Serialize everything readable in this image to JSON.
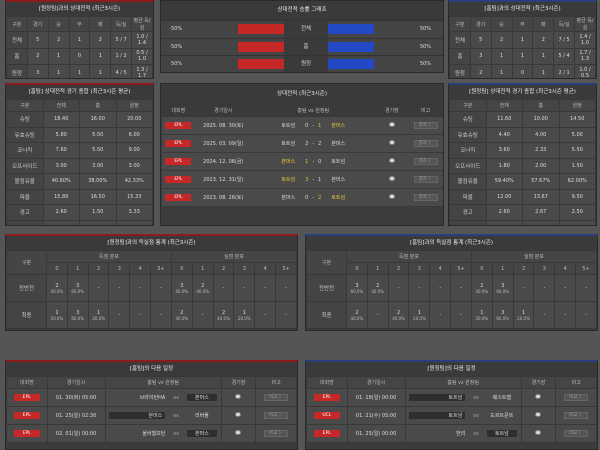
{
  "h2h_home": {
    "title": "[원정팀]과의 상대전적 (최근3시즌)",
    "headers": [
      "구분",
      "경기",
      "승",
      "무",
      "패",
      "득/실",
      "평균 득/실"
    ],
    "rows": [
      [
        "전체",
        "5",
        "2",
        "1",
        "2",
        "5 / 7",
        "1.0 / 1.4"
      ],
      [
        "홈",
        "2",
        "1",
        "0",
        "1",
        "1 / 2",
        "0.5 / 1.0"
      ],
      [
        "원정",
        "3",
        "1",
        "1",
        "1",
        "4 / 5",
        "1.3 / 1.7"
      ]
    ]
  },
  "h2h_away": {
    "title": "[홈팀]과의 상대전적 (최근3시즌)",
    "headers": [
      "구분",
      "경기",
      "승",
      "무",
      "패",
      "득/실",
      "평균 득/실"
    ],
    "rows": [
      [
        "전체",
        "5",
        "2",
        "1",
        "2",
        "7 / 5",
        "1.4 / 1.0"
      ],
      [
        "홈",
        "3",
        "1",
        "1",
        "1",
        "5 / 4",
        "1.7 / 1.3"
      ],
      [
        "원정",
        "2",
        "1",
        "0",
        "1",
        "2 / 1",
        "1.0 / 0.5"
      ]
    ]
  },
  "graph": {
    "title": "상대전적 승률 그래프",
    "rows": [
      {
        "label": "전체",
        "left": "50%",
        "right": "50%",
        "lv": 50,
        "rv": 50
      },
      {
        "label": "홈",
        "left": "50%",
        "right": "50%",
        "lv": 50,
        "rv": 50
      },
      {
        "label": "원정",
        "left": "50%",
        "right": "50%",
        "lv": 50,
        "rv": 50
      }
    ],
    "colors": {
      "home": "#c62828",
      "away": "#2449c4"
    }
  },
  "avg_home": {
    "title": "[홈팀] 상대전적 경기 종합 (최근3시즌 평균)",
    "headers": [
      "구분",
      "전체",
      "홈",
      "원정"
    ],
    "rows": [
      [
        "슈팅",
        "18.40",
        "16.00",
        "20.00"
      ],
      [
        "유효슈팅",
        "5.80",
        "5.50",
        "6.00"
      ],
      [
        "코너킥",
        "7.60",
        "5.50",
        "9.00"
      ],
      [
        "오프사이드",
        "3.00",
        "3.00",
        "3.00"
      ],
      [
        "볼점유율",
        "40.60%",
        "38.00%",
        "42.33%"
      ],
      [
        "파울",
        "15.80",
        "16.50",
        "15.33"
      ],
      [
        "경고",
        "2.60",
        "1.50",
        "3.33"
      ],
      [
        "퇴장",
        "0.00",
        "0.00",
        "0.00"
      ]
    ]
  },
  "avg_away": {
    "title": "[원정팀] 상대전적 경기 종합 (최근3시즌 평균)",
    "headers": [
      "구분",
      "전체",
      "홈",
      "원정"
    ],
    "rows": [
      [
        "슈팅",
        "11.60",
        "10.00",
        "14.50"
      ],
      [
        "유효슈팅",
        "4.40",
        "4.00",
        "5.00"
      ],
      [
        "코너킥",
        "3.60",
        "2.33",
        "5.50"
      ],
      [
        "오프사이드",
        "1.80",
        "2.00",
        "1.50"
      ],
      [
        "볼점유율",
        "59.40%",
        "57.67%",
        "62.00%"
      ],
      [
        "파울",
        "12.00",
        "13.67",
        "9.50"
      ],
      [
        "경고",
        "2.60",
        "2.67",
        "2.50"
      ],
      [
        "퇴장",
        "0.00",
        "0.00",
        "0.00"
      ]
    ]
  },
  "recent": {
    "title": "상대전적 (최근3시즌)",
    "tabs": [
      "전체",
      "5경기"
    ],
    "headers": [
      "대회명",
      "경기일시",
      "홈팀  vs  원정팀",
      "경기장",
      "비고"
    ],
    "button": "결과 〉",
    "rows": [
      {
        "league": "EPL",
        "date": "2025. 08. 30(토)",
        "home": "토트넘",
        "hs": "0",
        "as": "1",
        "away": "본머스",
        "win": "away"
      },
      {
        "league": "EPL",
        "date": "2025. 03. 09(일)",
        "home": "토트넘",
        "hs": "2",
        "as": "2",
        "away": "본머스",
        "win": "none"
      },
      {
        "league": "EPL",
        "date": "2024. 12. 06(금)",
        "home": "본머스",
        "hs": "1",
        "as": "0",
        "away": "토트넘",
        "win": "home"
      },
      {
        "league": "EPL",
        "date": "2023. 12. 31(일)",
        "home": "토트넘",
        "hs": "3",
        "as": "1",
        "away": "본머스",
        "win": "home"
      },
      {
        "league": "EPL",
        "date": "2023. 08. 26(토)",
        "home": "본머스",
        "hs": "0",
        "as": "2",
        "away": "토트넘",
        "win": "away"
      }
    ]
  },
  "score_home": {
    "title": "[원정팀]과의 득실점 통계 (최근3시즌)",
    "tabs": [
      "전체",
      "홈",
      "원정"
    ],
    "label": "구분",
    "g1": "득점 분포",
    "g2": "실점 분포",
    "cols": [
      "0",
      "1",
      "2",
      "3",
      "4",
      "5+"
    ],
    "rows": [
      {
        "label": "전반전",
        "cells": [
          [
            "2",
            "40.0%"
          ],
          [
            "3",
            "60.0%"
          ],
          [
            "-",
            ""
          ],
          [
            "-",
            ""
          ],
          [
            "-",
            ""
          ],
          [
            "-",
            ""
          ],
          [
            "3",
            "60.0%"
          ],
          [
            "2",
            "40.0%"
          ],
          [
            "-",
            ""
          ],
          [
            "-",
            ""
          ],
          [
            "-",
            ""
          ],
          [
            "-",
            ""
          ]
        ]
      },
      {
        "label": "최종",
        "cells": [
          [
            "1",
            "20.0%"
          ],
          [
            "3",
            "60.0%"
          ],
          [
            "1",
            "20.0%"
          ],
          [
            "-",
            ""
          ],
          [
            "-",
            ""
          ],
          [
            "-",
            ""
          ],
          [
            "2",
            "40.0%"
          ],
          [
            "-",
            ""
          ],
          [
            "2",
            "40.0%"
          ],
          [
            "1",
            "20.0%"
          ],
          [
            "-",
            ""
          ],
          [
            "-",
            ""
          ]
        ]
      }
    ]
  },
  "score_away": {
    "title": "[홈팀]과의 득실점 통계 (최근3시즌)",
    "tabs": [
      "전체",
      "홈",
      "원정"
    ],
    "label": "구분",
    "g1": "득점 분포",
    "g2": "실점 분포",
    "cols": [
      "0",
      "1",
      "2",
      "3",
      "4",
      "5+"
    ],
    "rows": [
      {
        "label": "전반전",
        "cells": [
          [
            "3",
            "60.0%"
          ],
          [
            "2",
            "40.0%"
          ],
          [
            "-",
            ""
          ],
          [
            "-",
            ""
          ],
          [
            "-",
            ""
          ],
          [
            "-",
            ""
          ],
          [
            "2",
            "40.0%"
          ],
          [
            "3",
            "60.0%"
          ],
          [
            "-",
            ""
          ],
          [
            "-",
            ""
          ],
          [
            "-",
            ""
          ],
          [
            "-",
            ""
          ]
        ]
      },
      {
        "label": "최종",
        "cells": [
          [
            "2",
            "40.0%"
          ],
          [
            "-",
            ""
          ],
          [
            "2",
            "40.0%"
          ],
          [
            "1",
            "20.0%"
          ],
          [
            "-",
            ""
          ],
          [
            "-",
            ""
          ],
          [
            "1",
            "20.0%"
          ],
          [
            "3",
            "60.0%"
          ],
          [
            "1",
            "20.0%"
          ],
          [
            "-",
            ""
          ],
          [
            "-",
            ""
          ],
          [
            "-",
            ""
          ]
        ]
      }
    ]
  },
  "next_home": {
    "title": "[홈팀]의 다음 일정",
    "headers": [
      "대회명",
      "경기일시",
      "홈팀  vs  원정팀",
      "경기장",
      "비고"
    ],
    "vs": "vs",
    "button": "비교 〉",
    "rows": [
      {
        "league": "EPL",
        "date": "01. 30(화) 05:00",
        "home": "브라이턴HA",
        "away": "본머스",
        "mark": "away"
      },
      {
        "league": "EPL",
        "date": "01. 25(일) 02:30",
        "home": "본머스",
        "away": "리버풀",
        "mark": "home"
      },
      {
        "league": "EPL",
        "date": "02. 01(일) 00:00",
        "home": "울버햄프턴",
        "away": "본머스",
        "mark": "away"
      }
    ]
  },
  "next_away": {
    "title": "[원정팀]의 다음 일정",
    "headers": [
      "대회명",
      "경기일시",
      "홈팀  vs  원정팀",
      "경기장",
      "비고"
    ],
    "vs": "vs",
    "button": "비교 〉",
    "rows": [
      {
        "league": "EPL",
        "date": "01. 18(일) 00:00",
        "home": "토트넘",
        "away": "웨스트햄",
        "mark": "home"
      },
      {
        "league": "UCL",
        "date": "01. 21(수) 05:00",
        "home": "토트넘",
        "away": "도르트문트",
        "mark": "home"
      },
      {
        "league": "EPL",
        "date": "01. 25(일) 00:00",
        "home": "번리",
        "away": "토트넘",
        "mark": "away"
      }
    ]
  }
}
